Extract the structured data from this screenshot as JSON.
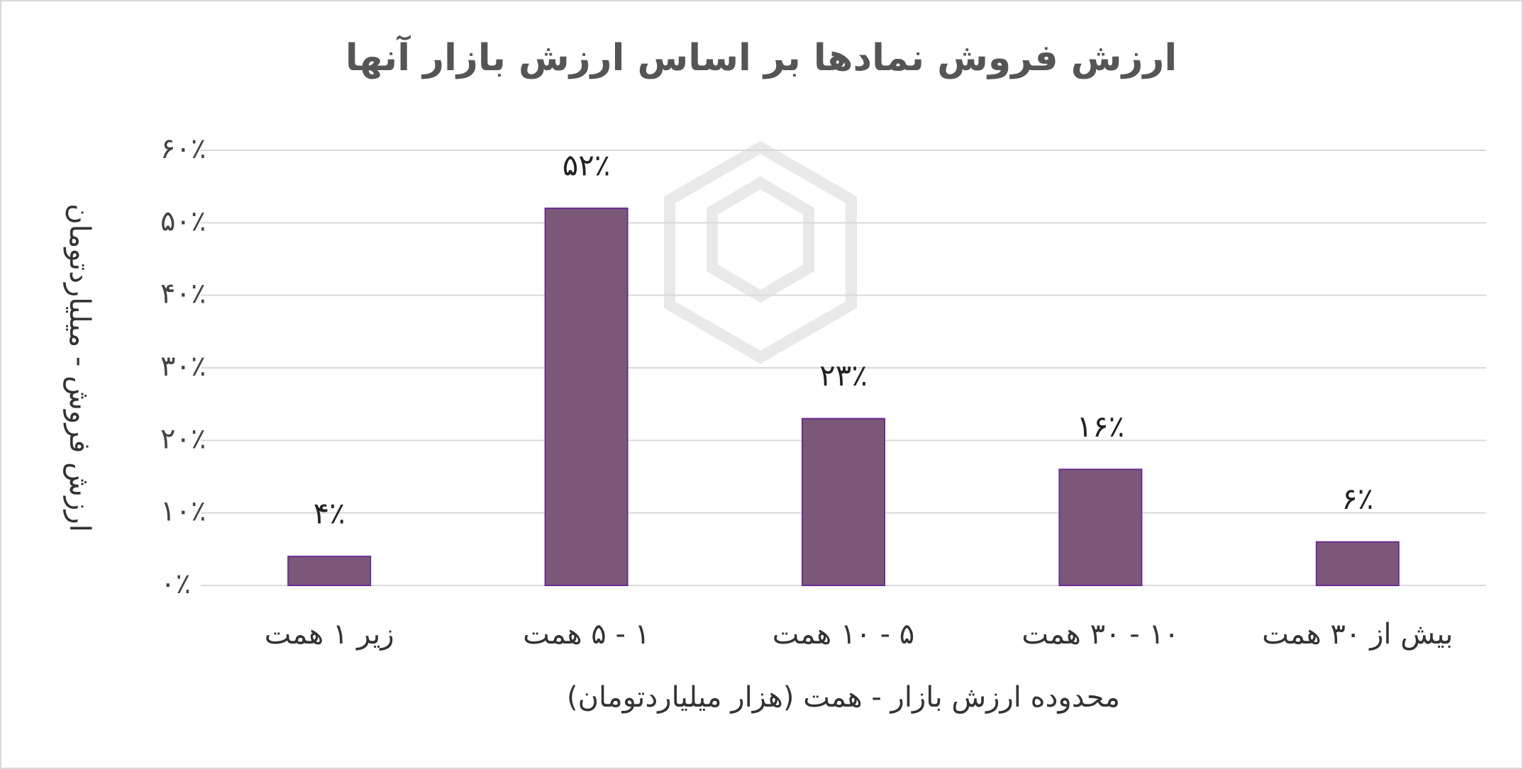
{
  "chart_data": {
    "type": "bar",
    "title": "ارزش فروش نمادها بر اساس ارزش بازار آنها",
    "y_label": "ارزش فروش - میلیاردتومان",
    "x_label": "محدوده ارزش بازار - همت (هزار میلیاردتومان)",
    "categories": [
      "زیر ۱ همت",
      "۱ - ۵ همت",
      "۵ - ۱۰ همت",
      "۱۰ - ۳۰ همت",
      "بیش از ۳۰ همت"
    ],
    "values": [
      4,
      52,
      23,
      16,
      6
    ],
    "value_labels": [
      "۴٪",
      "۵۲٪",
      "۲۳٪",
      "۱۶٪",
      "۶٪"
    ],
    "color": "#7b5878",
    "ylim": [
      0,
      60
    ],
    "yticks": [
      {
        "value": 0,
        "label": "۰٪"
      },
      {
        "value": 10,
        "label": "۱۰٪"
      },
      {
        "value": 20,
        "label": "۲۰٪"
      },
      {
        "value": 30,
        "label": "۳۰٪"
      },
      {
        "value": 40,
        "label": "۴۰٪"
      },
      {
        "value": 50,
        "label": "۵۰٪"
      },
      {
        "value": 60,
        "label": "۶۰٪"
      }
    ],
    "grid": true
  }
}
